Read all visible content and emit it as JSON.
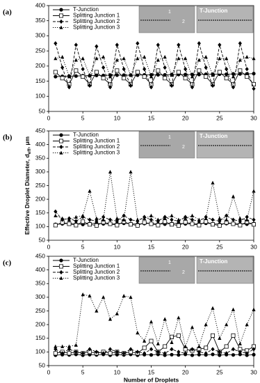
{
  "chart_data": [
    {
      "type": "line",
      "panel_label": "(a)",
      "inset_text": [
        "1",
        "2",
        "T-Junction"
      ],
      "x": [
        1,
        2,
        3,
        4,
        5,
        6,
        7,
        8,
        9,
        10,
        11,
        12,
        13,
        14,
        15,
        16,
        17,
        18,
        19,
        20,
        21,
        22,
        23,
        24,
        25,
        26,
        27,
        28,
        29,
        30
      ],
      "xlim": [
        0,
        30
      ],
      "xticks": [
        0,
        5,
        10,
        15,
        20,
        25,
        30
      ],
      "ylim": [
        50,
        400
      ],
      "yticks": [
        50,
        100,
        150,
        200,
        250,
        300,
        350,
        400
      ],
      "series": [
        {
          "name": "T-Junction",
          "color": "#000000",
          "marker": "circle",
          "line_style": "solid",
          "values": [
            165,
            166,
            167,
            167,
            168,
            168,
            169,
            169,
            170,
            170,
            170,
            170,
            170,
            171,
            171,
            171,
            171,
            172,
            172,
            172,
            172,
            172,
            173,
            173,
            173,
            173,
            174,
            174,
            174,
            175
          ]
        },
        {
          "name": "Splitting Junction 1",
          "color": "#000000",
          "marker": "square",
          "line_style": "solid",
          "values": [
            180,
            160,
            140,
            185,
            165,
            140,
            180,
            160,
            140,
            185,
            160,
            140,
            180,
            165,
            140,
            185,
            160,
            140,
            180,
            160,
            140,
            185,
            165,
            140,
            180,
            160,
            140,
            185,
            165,
            140
          ]
        },
        {
          "name": "Splitting Junction 2",
          "color": "#000000",
          "marker": "diamond",
          "line_style": "dashed",
          "values": [
            275,
            195,
            130,
            270,
            190,
            135,
            265,
            195,
            130,
            270,
            190,
            135,
            275,
            190,
            130,
            270,
            195,
            135,
            270,
            190,
            130,
            275,
            195,
            135,
            270,
            190,
            130,
            275,
            190,
            125
          ]
        },
        {
          "name": "Splitting Junction 3",
          "color": "#000000",
          "marker": "triangle",
          "line_style": "dotted",
          "values": [
            225,
            230,
            165,
            220,
            225,
            170,
            225,
            230,
            165,
            220,
            225,
            170,
            225,
            230,
            165,
            220,
            230,
            170,
            225,
            225,
            165,
            220,
            230,
            170,
            225,
            225,
            165,
            220,
            230,
            225
          ]
        }
      ]
    },
    {
      "type": "line",
      "panel_label": "(b)",
      "inset_text": [
        "1",
        "2",
        "T-Junction"
      ],
      "y_label": [
        "Effective Droplet Diameter, d",
        "eff",
        ", μm"
      ],
      "x": [
        1,
        2,
        3,
        4,
        5,
        6,
        7,
        8,
        9,
        10,
        11,
        12,
        13,
        14,
        15,
        16,
        17,
        18,
        19,
        20,
        21,
        22,
        23,
        24,
        25,
        26,
        27,
        28,
        29,
        30
      ],
      "xlim": [
        0,
        30
      ],
      "xticks": [
        0,
        5,
        10,
        15,
        20,
        25,
        30
      ],
      "ylim": [
        50,
        450
      ],
      "yticks": [
        50,
        100,
        150,
        200,
        250,
        300,
        350,
        400,
        450
      ],
      "series": [
        {
          "name": "T-Junction",
          "color": "#000000",
          "marker": "circle",
          "line_style": "solid",
          "values": [
            108,
            110,
            112,
            110,
            108,
            111,
            112,
            110,
            109,
            111,
            112,
            110,
            109,
            111,
            112,
            110,
            109,
            111,
            112,
            110,
            109,
            111,
            112,
            110,
            109,
            111,
            112,
            110,
            109,
            111
          ]
        },
        {
          "name": "Splitting Junction 1",
          "color": "#000000",
          "marker": "square",
          "line_style": "solid",
          "values": [
            105,
            115,
            110,
            105,
            118,
            108,
            104,
            116,
            110,
            105,
            118,
            108,
            104,
            115,
            110,
            105,
            118,
            108,
            104,
            116,
            110,
            105,
            118,
            108,
            104,
            115,
            110,
            105,
            117,
            108
          ]
        },
        {
          "name": "Splitting Junction 2",
          "color": "#000000",
          "marker": "diamond",
          "line_style": "dashed",
          "values": [
            155,
            125,
            130,
            120,
            135,
            125,
            120,
            135,
            125,
            120,
            140,
            125,
            120,
            135,
            125,
            120,
            135,
            125,
            120,
            135,
            125,
            120,
            135,
            125,
            120,
            140,
            125,
            120,
            135,
            125
          ]
        },
        {
          "name": "Splitting Junction 3",
          "color": "#000000",
          "marker": "triangle",
          "line_style": "dotted",
          "values": [
            140,
            130,
            125,
            135,
            140,
            230,
            130,
            125,
            300,
            130,
            125,
            300,
            125,
            130,
            140,
            125,
            130,
            140,
            125,
            130,
            140,
            125,
            130,
            260,
            130,
            125,
            210,
            130,
            125,
            230
          ]
        }
      ]
    },
    {
      "type": "line",
      "panel_label": "(c)",
      "inset_text": [
        "1",
        "2",
        "T-Junction"
      ],
      "x_label": "Number of Droplets",
      "x": [
        1,
        2,
        3,
        4,
        5,
        6,
        7,
        8,
        9,
        10,
        11,
        12,
        13,
        14,
        15,
        16,
        17,
        18,
        19,
        20,
        21,
        22,
        23,
        24,
        25,
        26,
        27,
        28,
        29,
        30
      ],
      "xlim": [
        0,
        30
      ],
      "xticks": [
        0,
        5,
        10,
        15,
        20,
        25,
        30
      ],
      "ylim": [
        50,
        450
      ],
      "yticks": [
        50,
        100,
        150,
        200,
        250,
        300,
        350,
        400,
        450
      ],
      "series": [
        {
          "name": "T-Junction",
          "color": "#000000",
          "marker": "circle",
          "line_style": "solid",
          "values": [
            88,
            90,
            89,
            91,
            88,
            90,
            89,
            91,
            88,
            90,
            89,
            91,
            88,
            90,
            89,
            91,
            88,
            90,
            89,
            91,
            88,
            90,
            89,
            91,
            88,
            90,
            89,
            91,
            88,
            90
          ]
        },
        {
          "name": "Splitting Junction 1",
          "color": "#000000",
          "marker": "square",
          "line_style": "solid",
          "values": [
            95,
            100,
            95,
            100,
            95,
            100,
            95,
            100,
            95,
            100,
            95,
            100,
            95,
            115,
            140,
            100,
            120,
            155,
            160,
            110,
            105,
            110,
            115,
            160,
            100,
            120,
            160,
            110,
            105,
            120
          ]
        },
        {
          "name": "Splitting Junction 2",
          "color": "#000000",
          "marker": "diamond",
          "line_style": "dashed",
          "values": [
            110,
            95,
            110,
            100,
            95,
            110,
            100,
            95,
            110,
            100,
            95,
            110,
            100,
            95,
            110,
            100,
            95,
            110,
            100,
            95,
            110,
            100,
            95,
            110,
            100,
            95,
            110,
            100,
            95,
            110
          ]
        },
        {
          "name": "Splitting Junction 3",
          "color": "#000000",
          "marker": "triangle",
          "line_style": "dotted",
          "values": [
            120,
            120,
            120,
            125,
            310,
            305,
            250,
            300,
            220,
            240,
            305,
            300,
            170,
            140,
            210,
            130,
            220,
            135,
            225,
            120,
            190,
            120,
            200,
            260,
            150,
            200,
            255,
            130,
            200,
            255
          ]
        }
      ]
    }
  ]
}
